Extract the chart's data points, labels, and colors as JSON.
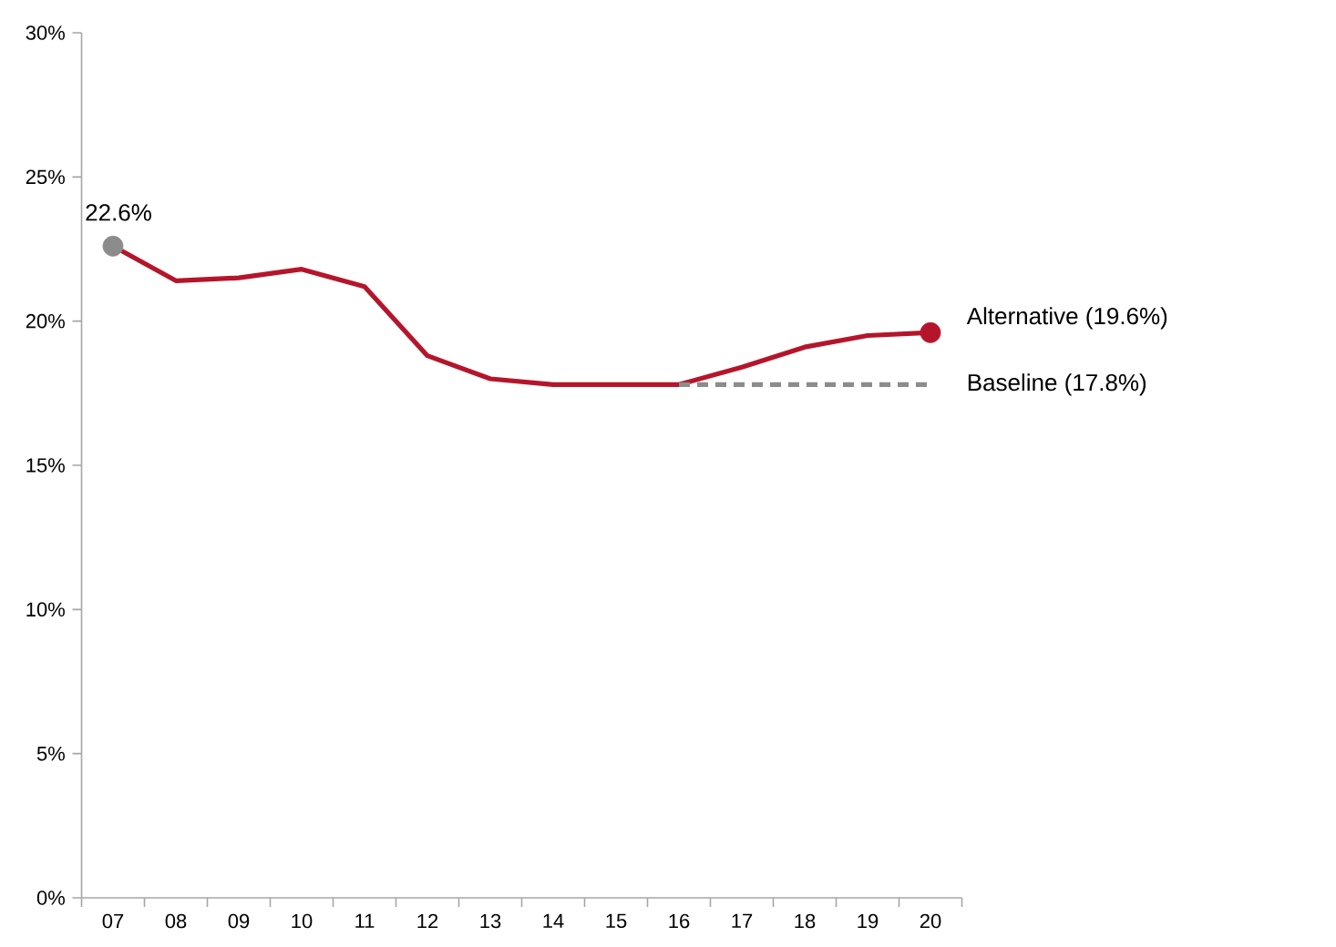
{
  "chart_data": {
    "type": "line",
    "categories": [
      "07",
      "08",
      "09",
      "10",
      "11",
      "12",
      "13",
      "14",
      "15",
      "16",
      "17",
      "18",
      "19",
      "20"
    ],
    "ylim": [
      0,
      30
    ],
    "yticks": [
      {
        "value": 0,
        "label": "0%"
      },
      {
        "value": 5,
        "label": "5%"
      },
      {
        "value": 10,
        "label": "10%"
      },
      {
        "value": 15,
        "label": "15%"
      },
      {
        "value": 20,
        "label": "20%"
      },
      {
        "value": 25,
        "label": "25%"
      },
      {
        "value": 30,
        "label": "30%"
      }
    ],
    "annotations": [
      {
        "text": "22.6%",
        "x": "07",
        "y": 22.6
      }
    ],
    "series": [
      {
        "name": "Alternative (19.6%)",
        "color": "#b5152b",
        "values": [
          22.6,
          21.4,
          21.5,
          21.8,
          21.2,
          18.8,
          18.0,
          17.8,
          17.8,
          17.8,
          18.4,
          19.1,
          19.5,
          19.6
        ]
      },
      {
        "name": "Baseline (17.8%)",
        "color": "#8c8c8c",
        "line_style": "dashed",
        "values": [
          null,
          null,
          null,
          null,
          null,
          null,
          null,
          null,
          null,
          17.8,
          17.8,
          17.8,
          17.8,
          17.8
        ]
      },
      {
        "type": "scatter",
        "x": [
          "07"
        ],
        "values": [
          22.6
        ],
        "color": "#8c8c8c",
        "marker": "circle"
      },
      {
        "type": "scatter",
        "x": [
          "20"
        ],
        "values": [
          19.6
        ],
        "color": "#b5152b",
        "marker": "circle"
      }
    ]
  }
}
